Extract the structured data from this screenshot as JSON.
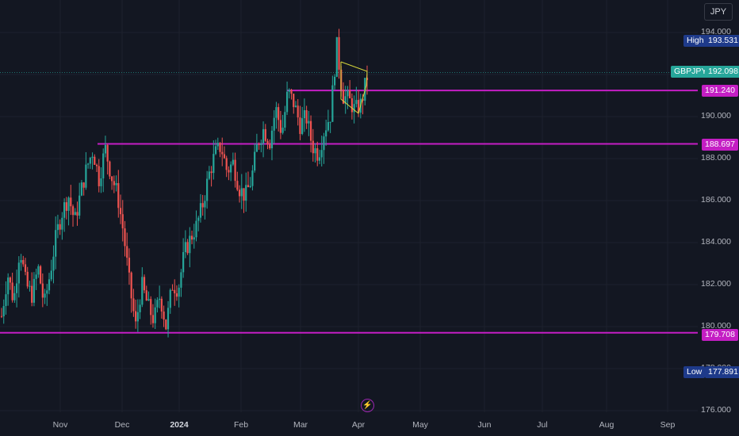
{
  "currency_label": "JPY",
  "colors": {
    "background": "#131722",
    "up": "#26a69a",
    "down": "#ef5350",
    "level": "#c41ec4",
    "wedge": "#d4d43a",
    "grid": "#1e222d"
  },
  "tags": {
    "high_label": "High",
    "high_value": "193.531",
    "symbol_label": "GBPJPY",
    "price_value": "192.098",
    "low_label": "Low",
    "low_value": "177.891"
  },
  "chart_data": {
    "type": "candlestick",
    "symbol": "GBPJPY",
    "y_ticks": [
      "194.000",
      "192.000",
      "190.000",
      "188.000",
      "186.000",
      "184.000",
      "182.000",
      "180.000",
      "178.000",
      "176.000"
    ],
    "x_ticks": [
      "Nov",
      "Dec",
      "2024",
      "Feb",
      "Mar",
      "Apr",
      "May",
      "Jun",
      "Jul",
      "Aug",
      "Sep"
    ],
    "ylim": [
      175.6,
      195.6
    ],
    "horizontal_levels": [
      {
        "value": 191.24,
        "label": "191.240",
        "from": "Mar"
      },
      {
        "value": 188.697,
        "label": "188.697",
        "from": "Nov"
      },
      {
        "value": 179.708,
        "label": "179.708",
        "from": "start"
      }
    ],
    "high": 193.531,
    "last_price": 192.098,
    "low": 177.891,
    "price_path": [
      180.5,
      182.5,
      181.2,
      183.8,
      182.0,
      181.5,
      182.8,
      181.0,
      182.6,
      184.4,
      185.5,
      186.2,
      185.0,
      186.4,
      187.6,
      188.4,
      187.0,
      188.5,
      187.2,
      186.3,
      184.5,
      182.0,
      180.0,
      182.0,
      181.0,
      180.3,
      181.5,
      180.0,
      182.0,
      181.8,
      183.5,
      184.2,
      184.8,
      185.8,
      187.2,
      188.2,
      188.6,
      187.4,
      187.8,
      186.6,
      186.2,
      187.0,
      188.7,
      189.4,
      188.8,
      190.4,
      189.2,
      191.2,
      190.6,
      189.6,
      190.0,
      188.6,
      188.2,
      189.4,
      190.1,
      193.4,
      191.0,
      190.8,
      190.3,
      190.6,
      191.9
    ]
  }
}
